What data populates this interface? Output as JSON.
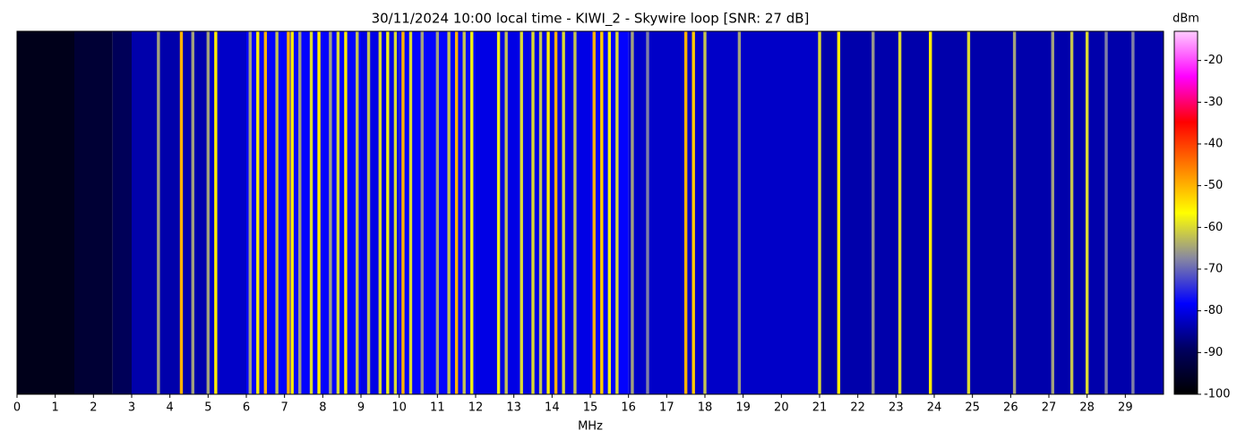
{
  "chart_data": {
    "type": "heatmap",
    "title": "30/11/2024 10:00 local time - KIWI_2 - Skywire loop [SNR: 27 dB]",
    "x_label": "MHz",
    "colorbar_label": "dBm",
    "xlim": [
      0,
      30
    ],
    "xticks": [
      0,
      1,
      2,
      3,
      4,
      5,
      6,
      7,
      8,
      9,
      10,
      11,
      12,
      13,
      14,
      15,
      16,
      17,
      18,
      19,
      20,
      21,
      22,
      23,
      24,
      25,
      26,
      27,
      28,
      29
    ],
    "clim": [
      -100,
      -13
    ],
    "cticks": [
      -100,
      -90,
      -80,
      -70,
      -60,
      -50,
      -40,
      -30,
      -20
    ],
    "colormap": [
      "#000000",
      "#000060",
      "#0000ff",
      "#8888a0",
      "#ffff00",
      "#ff8000",
      "#ff0000",
      "#ff00ff",
      "#ffccff"
    ],
    "background": {
      "bins": [
        0,
        1.5,
        2.5,
        3,
        5,
        6,
        9,
        10,
        12,
        15,
        16,
        18,
        21,
        24,
        30
      ],
      "values": [
        -97,
        -94,
        -90,
        -84,
        -82,
        -78,
        -80,
        -78,
        -80,
        -78,
        -82,
        -82,
        -84,
        -84
      ]
    },
    "signals": {
      "width": 0.08,
      "x": [
        3.7,
        4.3,
        4.6,
        5.0,
        5.2,
        6.1,
        6.3,
        6.5,
        6.8,
        7.1,
        7.2,
        7.4,
        7.7,
        7.9,
        8.2,
        8.4,
        8.6,
        8.9,
        9.2,
        9.5,
        9.7,
        9.9,
        10.1,
        10.3,
        10.6,
        11.0,
        11.3,
        11.5,
        11.7,
        11.9,
        12.6,
        12.8,
        13.2,
        13.5,
        13.7,
        13.9,
        14.1,
        14.3,
        14.6,
        15.1,
        15.3,
        15.5,
        15.7,
        16.1,
        16.5,
        17.5,
        17.7,
        18.0,
        18.9,
        21.0,
        21.5,
        22.4,
        23.1,
        23.9,
        24.9,
        26.1,
        27.1,
        27.6,
        28.0,
        28.5,
        29.2
      ],
      "values": [
        -65,
        -50,
        -65,
        -65,
        -55,
        -65,
        -55,
        -50,
        -62,
        -50,
        -55,
        -65,
        -60,
        -55,
        -65,
        -60,
        -55,
        -62,
        -62,
        -60,
        -58,
        -60,
        -50,
        -60,
        -65,
        -65,
        -62,
        -50,
        -62,
        -58,
        -58,
        -62,
        -60,
        -60,
        -62,
        -55,
        -50,
        -60,
        -62,
        -50,
        -52,
        -58,
        -60,
        -65,
        -68,
        -50,
        -52,
        -62,
        -65,
        -60,
        -55,
        -66,
        -60,
        -55,
        -60,
        -65,
        -65,
        -62,
        -60,
        -68,
        -68
      ]
    }
  }
}
